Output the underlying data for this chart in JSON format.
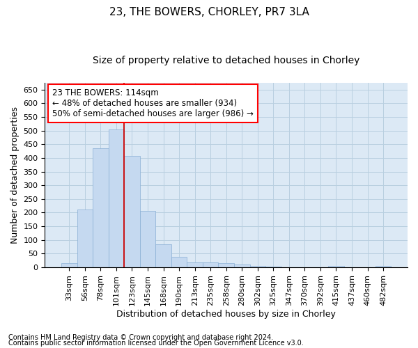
{
  "title": "23, THE BOWERS, CHORLEY, PR7 3LA",
  "subtitle": "Size of property relative to detached houses in Chorley",
  "xlabel": "Distribution of detached houses by size in Chorley",
  "ylabel": "Number of detached properties",
  "footnote1": "Contains HM Land Registry data © Crown copyright and database right 2024.",
  "footnote2": "Contains public sector information licensed under the Open Government Licence v3.0.",
  "annotation_line1": "23 THE BOWERS: 114sqm",
  "annotation_line2": "← 48% of detached houses are smaller (934)",
  "annotation_line3": "50% of semi-detached houses are larger (986) →",
  "bar_color": "#c5d9f0",
  "bar_edge_color": "#89afd4",
  "vline_color": "#cc0000",
  "vline_position": 3.5,
  "categories": [
    "33sqm",
    "56sqm",
    "78sqm",
    "101sqm",
    "123sqm",
    "145sqm",
    "168sqm",
    "190sqm",
    "213sqm",
    "235sqm",
    "258sqm",
    "280sqm",
    "302sqm",
    "325sqm",
    "347sqm",
    "370sqm",
    "392sqm",
    "415sqm",
    "437sqm",
    "460sqm",
    "482sqm"
  ],
  "values": [
    15,
    212,
    436,
    503,
    407,
    207,
    84,
    39,
    19,
    19,
    15,
    10,
    6,
    2,
    1,
    1,
    1,
    5,
    1,
    1,
    6
  ],
  "ylim": [
    0,
    675
  ],
  "yticks": [
    0,
    50,
    100,
    150,
    200,
    250,
    300,
    350,
    400,
    450,
    500,
    550,
    600,
    650
  ],
  "ax_facecolor": "#dce9f5",
  "background_color": "#ffffff",
  "grid_color": "#b8cfe0",
  "title_fontsize": 11,
  "subtitle_fontsize": 10,
  "axis_label_fontsize": 9,
  "tick_fontsize": 8,
  "annotation_fontsize": 8.5,
  "footnote_fontsize": 7
}
